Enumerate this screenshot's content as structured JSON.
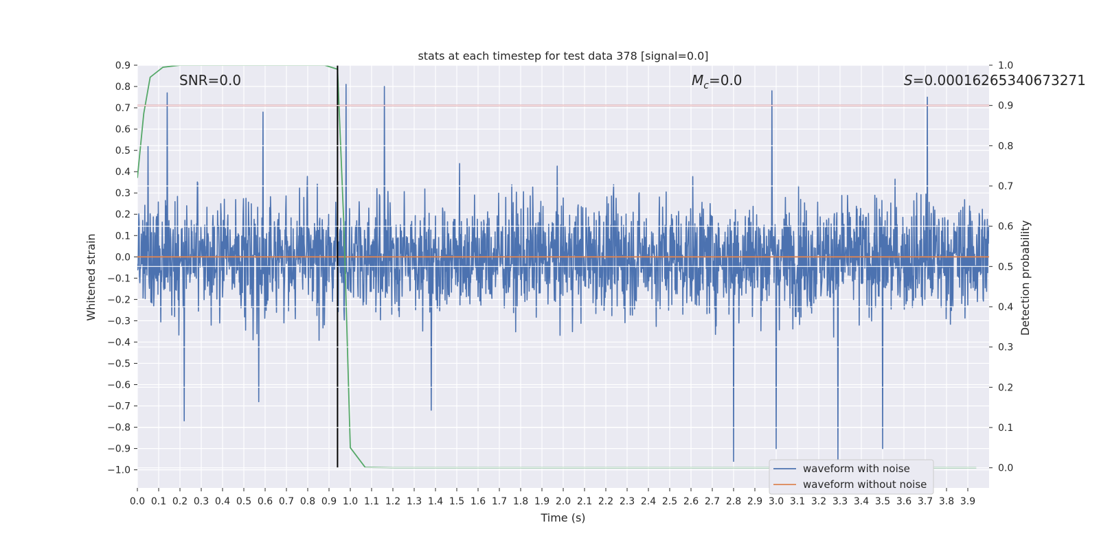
{
  "chart_data": {
    "type": "line",
    "title": "stats at each timestep for test data 378 [signal=0.0]",
    "xlabel": "Time (s)",
    "ylabel": "Whitened strain",
    "y2label": "Detection probability",
    "xlim": [
      0.0,
      4.0
    ],
    "ylim": [
      -1.085,
      0.9
    ],
    "y2lim": [
      -0.05,
      1.0
    ],
    "x_ticks": [
      "0.0",
      "0.1",
      "0.2",
      "0.3",
      "0.4",
      "0.5",
      "0.6",
      "0.7",
      "0.8",
      "0.9",
      "1.0",
      "1.1",
      "1.2",
      "1.3",
      "1.4",
      "1.5",
      "1.6",
      "1.7",
      "1.8",
      "1.9",
      "2.0",
      "2.1",
      "2.2",
      "2.3",
      "2.4",
      "2.5",
      "2.6",
      "2.7",
      "2.8",
      "2.9",
      "3.0",
      "3.1",
      "3.2",
      "3.3",
      "3.4",
      "3.5",
      "3.6",
      "3.7",
      "3.8",
      "3.9"
    ],
    "y_ticks": [
      "0.9",
      "0.8",
      "0.7",
      "0.6",
      "0.5",
      "0.4",
      "0.3",
      "0.2",
      "0.1",
      "0.0",
      "−0.1",
      "−0.2",
      "−0.3",
      "−0.4",
      "−0.5",
      "−0.6",
      "−0.7",
      "−0.8",
      "−0.9",
      "−1.0"
    ],
    "y2_ticks": [
      "1.0",
      "0.9",
      "0.8",
      "0.7",
      "0.6",
      "0.5",
      "0.4",
      "0.3",
      "0.2",
      "0.1",
      "0.0"
    ],
    "grid": true,
    "annotations": {
      "snr": "SNR=0.0",
      "mc_symbol": "M",
      "mc_sub": "c",
      "mc_value": "=0.0",
      "s_symbol": "S",
      "s_value": "=0.00016265340673271"
    },
    "series": [
      {
        "name": "waveform with noise",
        "color": "#4c72b0",
        "kind": "noise",
        "x_range": [
          0.0,
          4.0
        ],
        "typical_range": [
          -0.45,
          0.45
        ],
        "extremes": [
          {
            "x": 0.05,
            "y": 0.52
          },
          {
            "x": 0.14,
            "y": 0.77
          },
          {
            "x": 0.22,
            "y": -0.77
          },
          {
            "x": 0.59,
            "y": 0.68
          },
          {
            "x": 0.57,
            "y": -0.68
          },
          {
            "x": 0.98,
            "y": 0.81
          },
          {
            "x": 1.16,
            "y": 0.8
          },
          {
            "x": 1.38,
            "y": -0.72
          },
          {
            "x": 2.8,
            "y": -0.96
          },
          {
            "x": 2.98,
            "y": 0.78
          },
          {
            "x": 3.0,
            "y": -0.9
          },
          {
            "x": 3.29,
            "y": -0.95
          },
          {
            "x": 3.5,
            "y": -0.9
          },
          {
            "x": 3.71,
            "y": 0.75
          }
        ]
      },
      {
        "name": "waveform without noise",
        "color": "#dd8452",
        "x": [
          0.0,
          4.0
        ],
        "y": [
          0.0,
          0.0
        ]
      },
      {
        "name": "",
        "color": "#55a868",
        "axis": "right",
        "x": [
          0.0,
          0.03,
          0.06,
          0.12,
          0.2,
          0.4,
          0.6,
          0.8,
          0.88,
          0.94,
          0.97,
          1.0,
          1.07,
          1.2,
          2.0,
          3.0,
          3.94
        ],
        "y": [
          0.72,
          0.88,
          0.97,
          0.995,
          1.0,
          1.0,
          1.0,
          1.0,
          1.0,
          0.99,
          0.6,
          0.05,
          0.001,
          0.0,
          0.0,
          0.0,
          0.0
        ]
      }
    ],
    "threshold_line": {
      "axis": "right",
      "value": 0.9,
      "color": "#c44e52"
    },
    "vertical_line": {
      "x": 0.94,
      "color": "#000000"
    },
    "legend": {
      "placement": "bottom-right",
      "entries": [
        "waveform with noise",
        "waveform without noise"
      ]
    }
  }
}
